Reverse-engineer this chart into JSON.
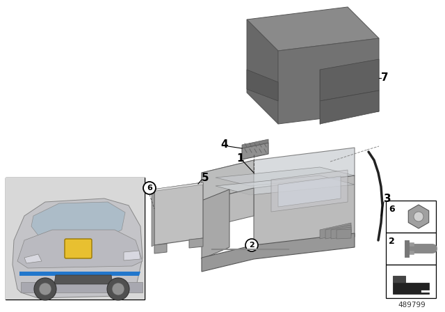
{
  "part_number": "489799",
  "background_color": "#ffffff",
  "fig_width": 6.4,
  "fig_height": 4.48,
  "dpi": 100,
  "cover_top_color": "#8a8a8a",
  "cover_front_color": "#727272",
  "cover_right_color": "#7a7a7a",
  "cover_left_color": "#686868",
  "tray_body_color": "#b0b0b0",
  "tray_inner_color": "#c8ccd0",
  "tray_base_color": "#989898",
  "connector_color": "#909090",
  "plate_color": "#c0c0c0",
  "small_parts_box_color": "#ffffff",
  "nut_color": "#a0a0a0",
  "bolt_color": "#b0b0b0",
  "bracket_dark": "#222222",
  "car_bg": "#d8d8d8",
  "yellow": "#e8c030",
  "blue": "#2277cc"
}
